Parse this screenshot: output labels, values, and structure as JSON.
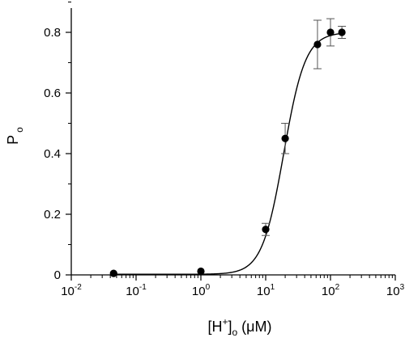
{
  "chart_data": {
    "type": "scatter",
    "title": "",
    "xlabel": {
      "base": "[H",
      "sup": "+",
      "close": "]",
      "sub": "o",
      "unit": " (μM)"
    },
    "ylabel": {
      "main": "P",
      "sub": "o"
    },
    "xscale": "log",
    "xlim": [
      0.01,
      1000
    ],
    "ylim": [
      0,
      0.9
    ],
    "x_ticks": [
      {
        "base": "10",
        "exp": "-2",
        "value": 0.01
      },
      {
        "base": "10",
        "exp": "-1",
        "value": 0.1
      },
      {
        "base": "10",
        "exp": "0",
        "value": 1
      },
      {
        "base": "10",
        "exp": "1",
        "value": 10
      },
      {
        "base": "10",
        "exp": "2",
        "value": 100
      },
      {
        "base": "10",
        "exp": "3",
        "value": 1000
      }
    ],
    "y_ticks": [
      {
        "label": "0",
        "value": 0
      },
      {
        "label": "0.2",
        "value": 0.2
      },
      {
        "label": "0.4",
        "value": 0.4
      },
      {
        "label": "0.6",
        "value": 0.6
      },
      {
        "label": "0.8",
        "value": 0.8
      }
    ],
    "grid": false,
    "legend": "none",
    "points": [
      {
        "x": 0.045,
        "y": 0.005,
        "err": 0
      },
      {
        "x": 1.0,
        "y": 0.012,
        "err": 0
      },
      {
        "x": 10.0,
        "y": 0.15,
        "err": 0.02
      },
      {
        "x": 20.0,
        "y": 0.45,
        "err": 0.05
      },
      {
        "x": 63.0,
        "y": 0.76,
        "err": 0.08
      },
      {
        "x": 100.0,
        "y": 0.8,
        "err": 0.045
      },
      {
        "x": 150.0,
        "y": 0.8,
        "err": 0.02
      }
    ],
    "fit": {
      "type": "hill",
      "bottom": 0.002,
      "top": 0.8,
      "ec50": 19,
      "hill": 2.6
    },
    "colors": {
      "marker": "#000000",
      "line": "#000000",
      "axis": "#000000"
    }
  }
}
